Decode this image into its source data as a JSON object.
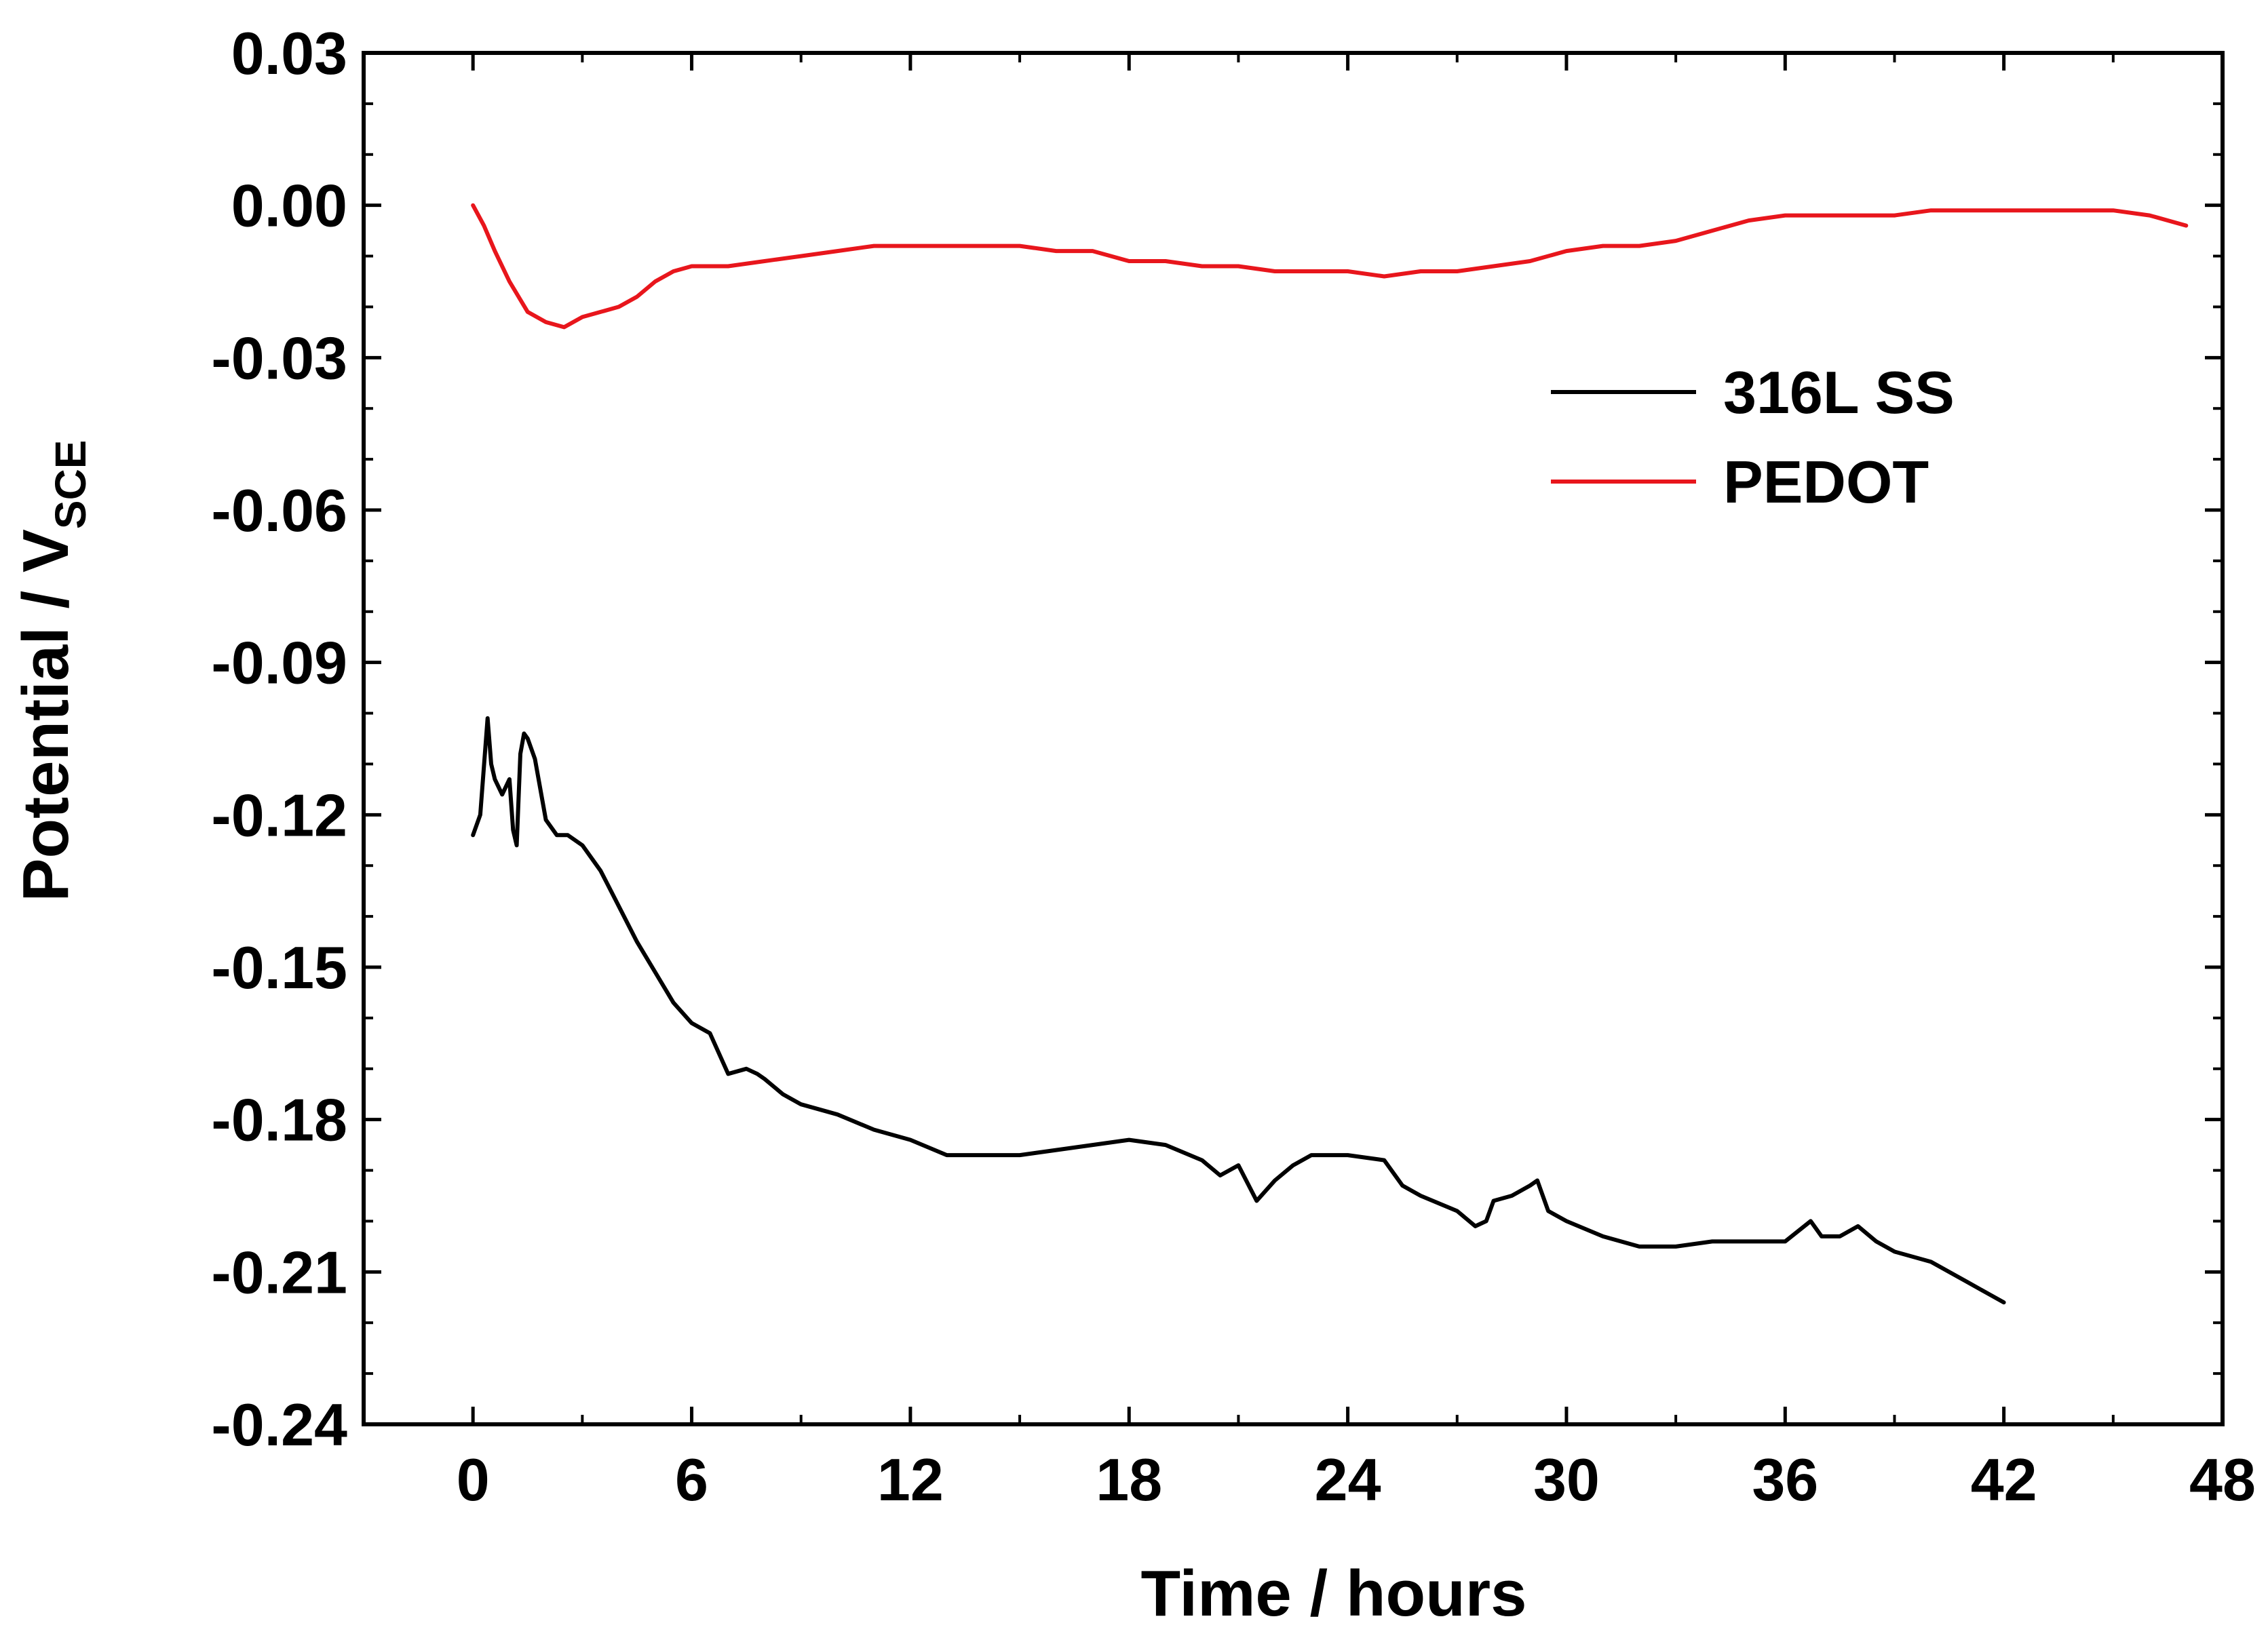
{
  "chart_data": {
    "type": "line",
    "title": "",
    "xlabel": "Time / hours",
    "ylabel": {
      "main": "Potential / V",
      "subscript": "SCE"
    },
    "xlim": [
      -3,
      48
    ],
    "ylim": [
      -0.24,
      0.03
    ],
    "xticks": [
      0,
      6,
      12,
      18,
      24,
      30,
      36,
      42,
      48
    ],
    "xtick_labels": [
      "0",
      "6",
      "12",
      "18",
      "24",
      "30",
      "36",
      "42",
      "48"
    ],
    "yticks": [
      0.03,
      0.0,
      -0.03,
      -0.06,
      -0.09,
      -0.12,
      -0.15,
      -0.18,
      -0.21,
      -0.24
    ],
    "ytick_labels": [
      "0.03",
      "0.00",
      "-0.03",
      "-0.06",
      "-0.09",
      "-0.12",
      "-0.15",
      "-0.18",
      "-0.21",
      "-0.24"
    ],
    "grid": false,
    "legend_position": "upper-right",
    "series": [
      {
        "name": "316L SS",
        "color": "#000000",
        "x": [
          0,
          0.2,
          0.4,
          0.5,
          0.6,
          0.8,
          1.0,
          1.1,
          1.2,
          1.3,
          1.4,
          1.5,
          1.7,
          2.0,
          2.3,
          2.6,
          3.0,
          3.5,
          4.0,
          4.5,
          5.0,
          5.5,
          6.0,
          6.5,
          7.0,
          7.5,
          7.8,
          8.0,
          8.5,
          9.0,
          9.5,
          10.0,
          11.0,
          12.0,
          13.0,
          14.0,
          15.0,
          16.0,
          17.0,
          18.0,
          19.0,
          20.0,
          20.5,
          21.0,
          21.5,
          22.0,
          22.5,
          23.0,
          24.0,
          25.0,
          25.5,
          26.0,
          27.0,
          27.5,
          27.8,
          28.0,
          28.5,
          29.0,
          29.2,
          29.5,
          30.0,
          31.0,
          32.0,
          33.0,
          34.0,
          35.0,
          36.0,
          36.7,
          37.0,
          37.5,
          38.0,
          38.5,
          39.0,
          40.0,
          41.0,
          42.0
        ],
        "y": [
          -0.124,
          -0.12,
          -0.101,
          -0.11,
          -0.113,
          -0.116,
          -0.113,
          -0.123,
          -0.126,
          -0.108,
          -0.104,
          -0.105,
          -0.109,
          -0.121,
          -0.124,
          -0.124,
          -0.126,
          -0.131,
          -0.138,
          -0.145,
          -0.151,
          -0.157,
          -0.161,
          -0.163,
          -0.171,
          -0.17,
          -0.171,
          -0.172,
          -0.175,
          -0.177,
          -0.178,
          -0.179,
          -0.182,
          -0.184,
          -0.187,
          -0.187,
          -0.187,
          -0.186,
          -0.185,
          -0.184,
          -0.185,
          -0.188,
          -0.191,
          -0.189,
          -0.196,
          -0.192,
          -0.189,
          -0.187,
          -0.187,
          -0.188,
          -0.193,
          -0.195,
          -0.198,
          -0.201,
          -0.2,
          -0.196,
          -0.195,
          -0.193,
          -0.192,
          -0.198,
          -0.2,
          -0.203,
          -0.205,
          -0.205,
          -0.204,
          -0.204,
          -0.204,
          -0.2,
          -0.203,
          -0.203,
          -0.201,
          -0.204,
          -0.206,
          -0.208,
          -0.212,
          -0.216
        ]
      },
      {
        "name": "PEDOT",
        "color": "#e8161c",
        "x": [
          0,
          0.3,
          0.6,
          1.0,
          1.5,
          2.0,
          2.5,
          3.0,
          3.5,
          4.0,
          4.5,
          5.0,
          5.5,
          6.0,
          7.0,
          8.0,
          9.0,
          10.0,
          11.0,
          12.0,
          13.0,
          14.0,
          15.0,
          16.0,
          17.0,
          18.0,
          19.0,
          20.0,
          21.0,
          22.0,
          23.0,
          24.0,
          25.0,
          26.0,
          27.0,
          28.0,
          29.0,
          30.0,
          31.0,
          32.0,
          33.0,
          34.0,
          35.0,
          36.0,
          37.0,
          38.0,
          38.5,
          39.0,
          40.0,
          41.0,
          42.0,
          43.0,
          44.0,
          45.0,
          46.0,
          47.0
        ],
        "y": [
          0.0,
          -0.004,
          -0.009,
          -0.015,
          -0.021,
          -0.023,
          -0.024,
          -0.022,
          -0.021,
          -0.02,
          -0.018,
          -0.015,
          -0.013,
          -0.012,
          -0.012,
          -0.011,
          -0.01,
          -0.009,
          -0.008,
          -0.008,
          -0.008,
          -0.008,
          -0.008,
          -0.009,
          -0.009,
          -0.011,
          -0.011,
          -0.012,
          -0.012,
          -0.013,
          -0.013,
          -0.013,
          -0.014,
          -0.013,
          -0.013,
          -0.012,
          -0.011,
          -0.009,
          -0.008,
          -0.008,
          -0.007,
          -0.005,
          -0.003,
          -0.002,
          -0.002,
          -0.002,
          -0.002,
          -0.002,
          -0.001,
          -0.001,
          -0.001,
          -0.001,
          -0.001,
          -0.001,
          -0.002,
          -0.004
        ]
      }
    ]
  }
}
